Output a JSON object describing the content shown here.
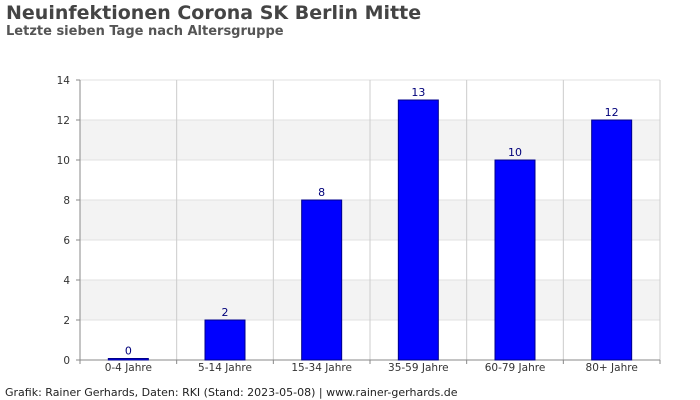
{
  "chart_data": {
    "type": "bar",
    "title": "Neuinfektionen Corona SK Berlin Mitte",
    "subtitle": "Letzte sieben Tage nach Altersgruppe",
    "categories": [
      "0-4 Jahre",
      "5-14 Jahre",
      "15-34 Jahre",
      "35-59 Jahre",
      "60-79 Jahre",
      "80+ Jahre"
    ],
    "values": [
      0,
      2,
      8,
      13,
      10,
      12
    ],
    "data_labels": [
      "0",
      "2",
      "8",
      "13",
      "10",
      "12"
    ],
    "ylim": [
      0,
      14
    ],
    "yticks": [
      0,
      2,
      4,
      6,
      8,
      10,
      12,
      14
    ],
    "ytick_labels": [
      "0",
      "2",
      "4",
      "6",
      "8",
      "10",
      "12",
      "14"
    ],
    "grid": true,
    "bar_color": "#0000ff",
    "bar_edge_color": "#00008b",
    "band_color": "#f3f3f3"
  },
  "footer": "Grafik: Rainer Gerhards, Daten: RKI (Stand: 2023-05-08) | www.rainer-gerhards.de"
}
